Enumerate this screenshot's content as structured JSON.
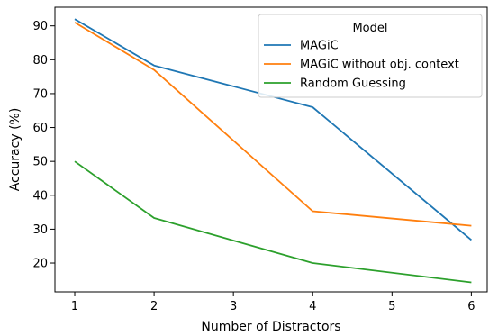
{
  "chart_data": {
    "type": "line",
    "title": "",
    "xlabel": "Number of Distractors",
    "ylabel": "Accuracy (%)",
    "x": [
      1,
      2,
      4,
      6
    ],
    "xlim": [
      0.75,
      6.2
    ],
    "ylim": [
      11.5,
      95.5
    ],
    "xticks": [
      1,
      2,
      3,
      4,
      5,
      6
    ],
    "yticks": [
      20,
      30,
      40,
      50,
      60,
      70,
      80,
      90
    ],
    "grid": false,
    "legend": {
      "title": "Model",
      "placement": "top-right"
    },
    "series": [
      {
        "name": "MAGiC",
        "color": "#1f77b4",
        "values": [
          92.0,
          78.3,
          66.0,
          26.8
        ]
      },
      {
        "name": "MAGiC without obj. context",
        "color": "#ff7f0e",
        "values": [
          91.0,
          77.0,
          35.3,
          31.0
        ]
      },
      {
        "name": "Random Guessing",
        "color": "#2ca02c",
        "values": [
          50.0,
          33.3,
          20.0,
          14.3
        ]
      }
    ]
  }
}
